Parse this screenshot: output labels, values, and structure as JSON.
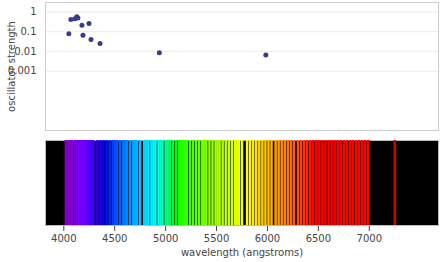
{
  "chart_data": [
    {
      "type": "scatter",
      "ylabel": "oscillator strength",
      "x": [
        4049,
        4069,
        4109,
        4128,
        4138,
        4178,
        4188,
        4247,
        4267,
        4356,
        4938,
        5984
      ],
      "values": [
        0.078,
        0.41,
        0.45,
        0.57,
        0.5,
        0.21,
        0.067,
        0.26,
        0.04,
        0.025,
        0.0085,
        0.0066
      ],
      "color": "#3b3b8c",
      "xlim": [
        3820,
        7680
      ],
      "ylim": [
        1e-06,
        3
      ],
      "yticks": [
        1,
        0.1,
        0.01,
        0.001
      ],
      "log": "y",
      "grid": true,
      "tick_labels": "y"
    },
    {
      "type": "spectrum",
      "xlabel": "wavelength (angstroms)",
      "lines": [
        4020,
        4035,
        4050,
        4065,
        4080,
        4110,
        4130,
        4150,
        4170,
        4190,
        4210,
        4230,
        4250,
        4270,
        4290,
        4330,
        4360,
        4390,
        4420,
        4450,
        4480,
        4500,
        4520,
        4550,
        4580,
        4600,
        4620,
        4650,
        4680,
        4700,
        4720,
        4750,
        4790,
        4810,
        4830,
        4860,
        4880,
        4900,
        4930,
        4950,
        4970,
        5000,
        5020,
        5040,
        5070,
        5100,
        5130,
        5150,
        5170,
        5190,
        5210,
        5240,
        5270,
        5300,
        5330,
        5360,
        5380,
        5400,
        5430,
        5460,
        5490,
        5510,
        5530,
        5560,
        5590,
        5620,
        5650,
        5680,
        5700,
        5720,
        5750,
        5800,
        5830,
        5860,
        5890,
        5920,
        5950,
        5980,
        6010,
        6040,
        6080,
        6110,
        6140,
        6170,
        6200,
        6230,
        6260,
        6300,
        6330,
        6360,
        6390,
        6420,
        6450,
        6480,
        6510,
        6540,
        6570,
        6600,
        6630,
        6660,
        6690,
        6720,
        6750,
        6780,
        6810,
        6840,
        6870,
        6900,
        6930,
        6960,
        6990,
        7250
      ],
      "xlim": [
        3820,
        7680
      ],
      "xticks": [
        4000,
        4500,
        5000,
        5500,
        6000,
        6500,
        7000
      ],
      "tick_labels": "x"
    }
  ]
}
